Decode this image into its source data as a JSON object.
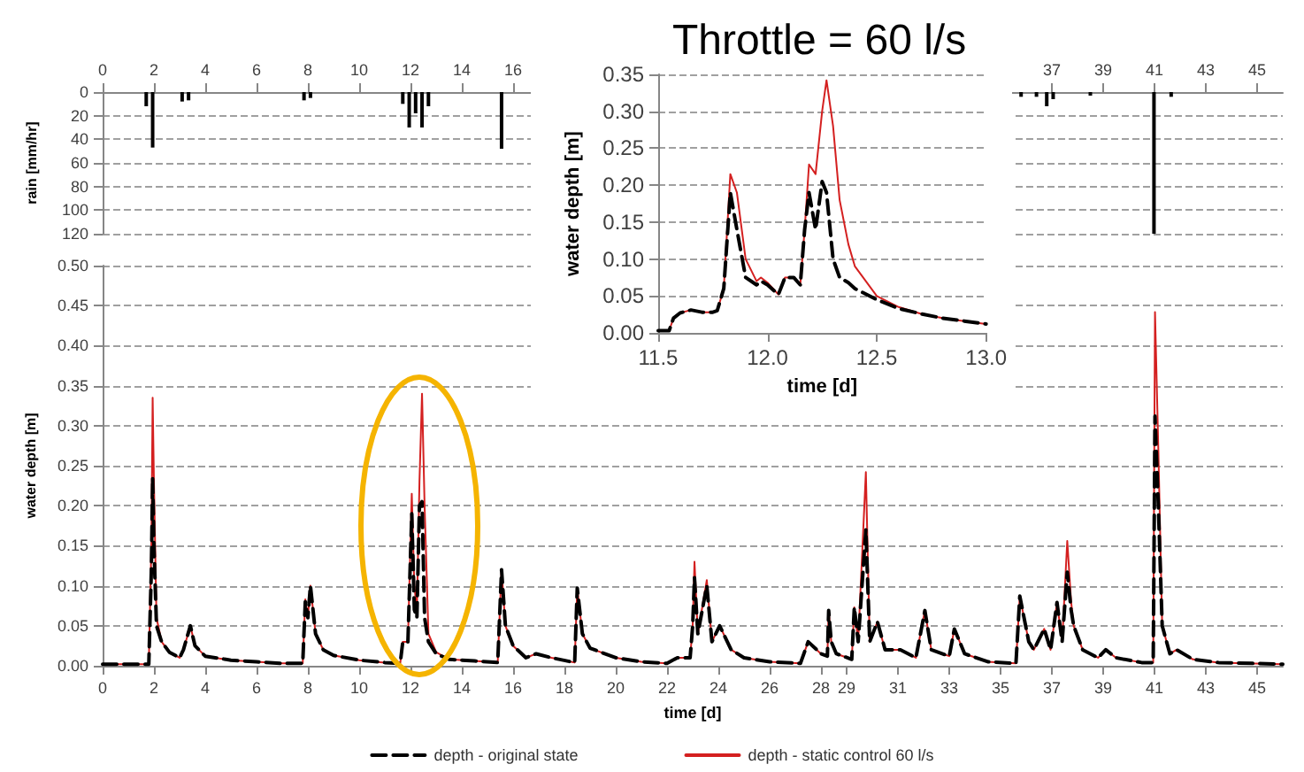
{
  "chart_data": [
    {
      "type": "bar",
      "ylabel": "rain [mm/hr]",
      "xlim": [
        0,
        46
      ],
      "xticks": [
        0,
        2,
        4,
        6,
        8,
        10,
        12,
        14,
        16,
        37,
        39,
        41,
        43,
        45
      ],
      "ylim": [
        120,
        0
      ],
      "yticks": [
        0,
        20,
        40,
        60,
        80,
        100,
        120
      ],
      "grid": "y",
      "x": [
        1.7,
        1.95,
        3.1,
        3.35,
        7.85,
        8.1,
        11.7,
        11.95,
        12.2,
        12.45,
        12.7,
        15.55,
        35.8,
        36.4,
        36.8,
        37.05,
        38.5,
        40.98,
        41.65
      ],
      "series": [
        {
          "color": "#000000",
          "values": [
            12,
            47,
            8,
            7,
            7,
            5,
            10,
            30,
            18,
            30,
            12,
            48,
            4,
            4,
            12,
            6,
            3,
            120,
            4
          ]
        }
      ]
    },
    {
      "type": "line",
      "xlabel": "time [d]",
      "ylabel": "water depth [m]",
      "xlim": [
        0,
        46
      ],
      "xticks": [
        0,
        2,
        4,
        6,
        8,
        10,
        12,
        14,
        16,
        18,
        20,
        22,
        24,
        26,
        28,
        29,
        31,
        33,
        35,
        37,
        39,
        41,
        43,
        45
      ],
      "ylim": [
        0,
        0.5
      ],
      "yticks": [
        {
          "value": 0,
          "label": "0.00"
        },
        {
          "value": 0.05,
          "label": "0.05"
        },
        {
          "value": 0.1,
          "label": "0.10"
        },
        {
          "value": 0.15,
          "label": "0.15"
        },
        {
          "value": 0.2,
          "label": "0.20"
        },
        {
          "value": 0.25,
          "label": "0.25"
        },
        {
          "value": 0.3,
          "label": "0.30"
        },
        {
          "value": 0.35,
          "label": "0.35"
        },
        {
          "value": 0.4,
          "label": "0.40"
        },
        {
          "value": 0.45,
          "label": "0.45"
        },
        {
          "value": 0.5,
          "label": "0.50"
        }
      ],
      "grid": "y",
      "legend": "bottom",
      "marker": "none",
      "x": [
        0,
        1.8,
        1.9,
        1.95,
        2.0,
        2.1,
        2.3,
        2.6,
        3.0,
        3.15,
        3.42,
        3.6,
        4.0,
        5.0,
        6.0,
        7.0,
        7.8,
        7.9,
        8.0,
        8.1,
        8.3,
        8.6,
        9.0,
        10.0,
        11.0,
        11.6,
        11.7,
        11.9,
        12.05,
        12.15,
        12.25,
        12.35,
        12.45,
        12.55,
        12.7,
        13.0,
        13.5,
        14.5,
        15.4,
        15.55,
        15.7,
        16.0,
        16.5,
        16.9,
        17.5,
        18.4,
        18.5,
        18.7,
        19.0,
        20.0,
        21.0,
        22.0,
        22.4,
        22.9,
        23.0,
        23.07,
        23.2,
        23.55,
        23.75,
        24.05,
        24.5,
        25.0,
        26.0,
        27.2,
        27.5,
        28.0,
        28.25,
        28.3,
        28.4,
        28.6,
        29.2,
        29.3,
        29.45,
        29.75,
        29.9,
        30.2,
        30.5,
        31.1,
        31.7,
        32.05,
        32.3,
        33.0,
        33.2,
        33.6,
        34.5,
        35.6,
        35.75,
        36.1,
        36.3,
        36.7,
        36.95,
        37.2,
        37.4,
        37.6,
        37.75,
        37.85,
        38.2,
        38.8,
        39.1,
        39.5,
        40.5,
        40.95,
        41.02,
        41.15,
        41.3,
        41.6,
        41.86,
        42.5,
        43.5,
        46
      ],
      "series": [
        {
          "name": "depth - original state",
          "color": "#000000",
          "line_style": "dashed",
          "values": [
            0.002,
            0.002,
            0.12,
            0.235,
            0.15,
            0.05,
            0.03,
            0.017,
            0.01,
            0.02,
            0.05,
            0.025,
            0.012,
            0.007,
            0.005,
            0.003,
            0.003,
            0.08,
            0.06,
            0.1,
            0.04,
            0.02,
            0.013,
            0.007,
            0.004,
            0.003,
            0.03,
            0.03,
            0.19,
            0.07,
            0.06,
            0.2,
            0.205,
            0.06,
            0.03,
            0.015,
            0.008,
            0.006,
            0.004,
            0.12,
            0.05,
            0.025,
            0.01,
            0.015,
            0.01,
            0.004,
            0.097,
            0.04,
            0.022,
            0.01,
            0.005,
            0.003,
            0.01,
            0.01,
            0.05,
            0.11,
            0.04,
            0.1,
            0.03,
            0.05,
            0.02,
            0.01,
            0.005,
            0.003,
            0.03,
            0.015,
            0.012,
            0.069,
            0.03,
            0.015,
            0.008,
            0.073,
            0.03,
            0.17,
            0.03,
            0.055,
            0.02,
            0.02,
            0.01,
            0.069,
            0.02,
            0.012,
            0.046,
            0.015,
            0.005,
            0.003,
            0.087,
            0.03,
            0.02,
            0.046,
            0.02,
            0.079,
            0.03,
            0.117,
            0.07,
            0.05,
            0.02,
            0.01,
            0.02,
            0.01,
            0.004,
            0.004,
            0.312,
            0.2,
            0.05,
            0.015,
            0.02,
            0.008,
            0.004,
            0.002
          ]
        },
        {
          "name": "depth - static control 60 l/s",
          "color": "#d42020",
          "line_style": "solid",
          "values": [
            0.002,
            0.002,
            0.15,
            0.335,
            0.23,
            0.06,
            0.03,
            0.017,
            0.01,
            0.02,
            0.05,
            0.025,
            0.012,
            0.007,
            0.005,
            0.003,
            0.003,
            0.083,
            0.06,
            0.1,
            0.04,
            0.02,
            0.013,
            0.007,
            0.004,
            0.003,
            0.03,
            0.03,
            0.215,
            0.1,
            0.07,
            0.23,
            0.34,
            0.2,
            0.04,
            0.017,
            0.008,
            0.006,
            0.004,
            0.12,
            0.05,
            0.025,
            0.01,
            0.015,
            0.01,
            0.004,
            0.097,
            0.04,
            0.022,
            0.01,
            0.005,
            0.003,
            0.01,
            0.01,
            0.05,
            0.13,
            0.04,
            0.107,
            0.03,
            0.05,
            0.02,
            0.01,
            0.005,
            0.003,
            0.03,
            0.015,
            0.012,
            0.069,
            0.03,
            0.015,
            0.008,
            0.073,
            0.03,
            0.242,
            0.03,
            0.055,
            0.02,
            0.02,
            0.01,
            0.069,
            0.02,
            0.012,
            0.046,
            0.015,
            0.005,
            0.003,
            0.087,
            0.03,
            0.02,
            0.046,
            0.02,
            0.079,
            0.03,
            0.156,
            0.08,
            0.05,
            0.02,
            0.01,
            0.02,
            0.01,
            0.004,
            0.004,
            0.442,
            0.27,
            0.05,
            0.015,
            0.02,
            0.008,
            0.004,
            0.002
          ]
        }
      ]
    },
    {
      "type": "line",
      "title": "Throttle = 60 l/s",
      "xlabel": "time [d]",
      "ylabel": "water depth [m]",
      "xlim": [
        11.5,
        13.0
      ],
      "xticks": [
        {
          "value": 11.5,
          "label": "11.5"
        },
        {
          "value": 12,
          "label": "12.0"
        },
        {
          "value": 12.5,
          "label": "12.5"
        },
        {
          "value": 13,
          "label": "13.0"
        }
      ],
      "ylim": [
        0,
        0.35
      ],
      "yticks": [
        {
          "value": 0,
          "label": "0.00"
        },
        {
          "value": 0.05,
          "label": "0.05"
        },
        {
          "value": 0.1,
          "label": "0.10"
        },
        {
          "value": 0.15,
          "label": "0.15"
        },
        {
          "value": 0.2,
          "label": "0.20"
        },
        {
          "value": 0.25,
          "label": "0.25"
        },
        {
          "value": 0.3,
          "label": "0.30"
        },
        {
          "value": 0.35,
          "label": "0.35"
        }
      ],
      "grid": "y",
      "marker": "none",
      "x": [
        11.5,
        11.55,
        11.57,
        11.6,
        11.65,
        11.7,
        11.75,
        11.77,
        11.8,
        11.83,
        11.86,
        11.9,
        11.95,
        11.97,
        12.0,
        12.05,
        12.08,
        12.12,
        12.15,
        12.17,
        12.19,
        12.22,
        12.25,
        12.27,
        12.3,
        12.33,
        12.37,
        12.4,
        12.5,
        12.6,
        12.7,
        12.8,
        12.9,
        13.0
      ],
      "series": [
        {
          "color": "#000000",
          "line_style": "dashed",
          "values": [
            0.003,
            0.003,
            0.02,
            0.027,
            0.031,
            0.028,
            0.028,
            0.03,
            0.06,
            0.19,
            0.14,
            0.075,
            0.065,
            0.07,
            0.065,
            0.052,
            0.075,
            0.075,
            0.065,
            0.14,
            0.19,
            0.14,
            0.205,
            0.19,
            0.1,
            0.075,
            0.068,
            0.06,
            0.045,
            0.033,
            0.026,
            0.02,
            0.016,
            0.012
          ]
        },
        {
          "color": "#d42020",
          "line_style": "solid",
          "values": [
            0.003,
            0.003,
            0.02,
            0.027,
            0.031,
            0.028,
            0.028,
            0.03,
            0.06,
            0.215,
            0.19,
            0.1,
            0.07,
            0.075,
            0.068,
            0.052,
            0.075,
            0.075,
            0.065,
            0.14,
            0.228,
            0.215,
            0.3,
            0.342,
            0.28,
            0.18,
            0.12,
            0.09,
            0.05,
            0.035,
            0.026,
            0.02,
            0.016,
            0.012
          ]
        }
      ]
    }
  ]
}
